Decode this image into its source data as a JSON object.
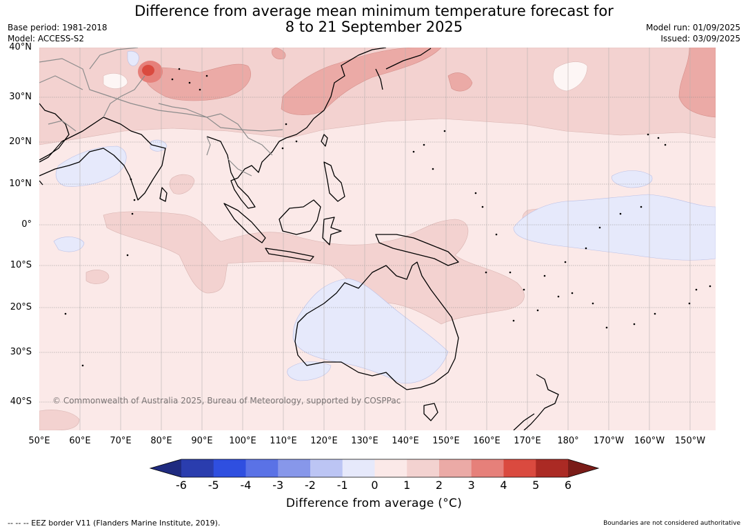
{
  "title": {
    "line1": "Difference from average mean minimum temperature forecast for",
    "line2": "8 to 21 September 2025"
  },
  "meta": {
    "base_period": "Base period: 1981-2018",
    "model": "Model: ACCESS-S2",
    "model_run": "Model run: 01/09/2025",
    "issued": "Issued: 03/09/2025"
  },
  "lat_labels": [
    "40°N",
    "30°N",
    "20°N",
    "10°N",
    "0°",
    "10°S",
    "20°S",
    "30°S",
    "40°S"
  ],
  "lon_labels": [
    "50°E",
    "60°E",
    "70°E",
    "80°E",
    "90°E",
    "100°E",
    "110°E",
    "120°E",
    "130°E",
    "140°E",
    "150°E",
    "160°E",
    "170°E",
    "180°",
    "170°W",
    "160°W",
    "150°W"
  ],
  "copyright": "© Commonwealth of Australia 2025, Bureau of Meteorology, supported by COSPPac",
  "colorbar": {
    "labels": [
      "-6",
      "-5",
      "-4",
      "-3",
      "-2",
      "-1",
      "0",
      "1",
      "2",
      "3",
      "4",
      "5",
      "6"
    ],
    "colors": [
      "#1f2b80",
      "#2a3dae",
      "#2f4fe0",
      "#5a72e6",
      "#8797ea",
      "#bcc5f4",
      "#e6e9fb",
      "#fbe9e8",
      "#f3d2d0",
      "#ebaaa6",
      "#e6807a",
      "#da4a3f",
      "#ab2a24",
      "#7a1c18"
    ],
    "title": "Difference from average (°C)"
  },
  "footer": {
    "left": "--  --  -- EEZ border V11 (Flanders Marine Institute, 2019).",
    "right": "Boundaries are not considered authoritative"
  }
}
